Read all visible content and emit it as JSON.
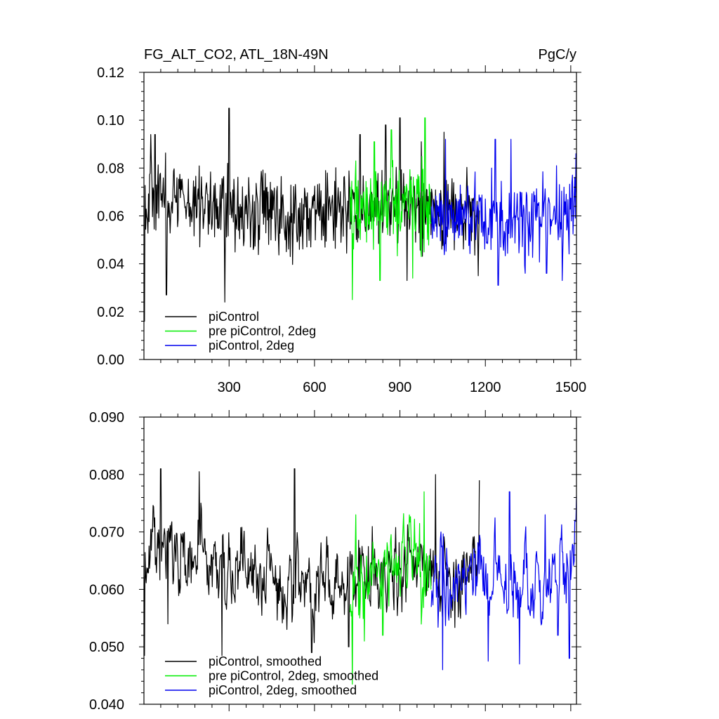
{
  "chart_data": [
    {
      "type": "line",
      "title_left": "FG_ALT_CO2, ATL_18N-49N",
      "title_right": "PgC/y",
      "xlim": [
        1,
        1520
      ],
      "ylim": [
        0.0,
        0.12
      ],
      "xticks": [
        300,
        600,
        900,
        1200,
        1500
      ],
      "xtick_labels": [
        "300",
        "600",
        "900",
        "1200",
        "1500"
      ],
      "yticks": [
        0.0,
        0.02,
        0.04,
        0.06,
        0.08,
        0.1,
        0.12
      ],
      "ytick_labels": [
        "0.00",
        "0.02",
        "0.04",
        "0.06",
        "0.08",
        "0.10",
        "0.12"
      ],
      "legend_position": "bottom-left",
      "series": [
        {
          "name": "piControl",
          "color": "#000000",
          "x_start": 1,
          "x_end": 1180,
          "mean": 0.064,
          "noise": 0.009,
          "segment_means": [
            [
              1,
              0.069
            ],
            [
              250,
              0.065
            ],
            [
              500,
              0.06
            ],
            [
              700,
              0.062
            ],
            [
              900,
              0.064
            ],
            [
              1180,
              0.06
            ]
          ],
          "extremes": [
            [
              2,
              0.016
            ],
            [
              25,
              0.094
            ],
            [
              40,
              0.094
            ],
            [
              80,
              0.027
            ],
            [
              300,
              0.105
            ],
            [
              285,
              0.024
            ],
            [
              760,
              0.094
            ],
            [
              850,
              0.098
            ],
            [
              900,
              0.101
            ],
            [
              925,
              0.033
            ],
            [
              975,
              0.091
            ],
            [
              1055,
              0.095
            ],
            [
              1175,
              0.035
            ]
          ]
        },
        {
          "name": "pre piControl, 2deg",
          "color": "#00ee00",
          "x_start": 725,
          "x_end": 1010,
          "mean": 0.064,
          "noise": 0.01,
          "segment_means": [
            [
              725,
              0.06
            ],
            [
              800,
              0.066
            ],
            [
              900,
              0.066
            ],
            [
              1010,
              0.063
            ]
          ],
          "extremes": [
            [
              733,
              0.025
            ],
            [
              745,
              0.083
            ],
            [
              810,
              0.091
            ],
            [
              830,
              0.033
            ],
            [
              870,
              0.096
            ],
            [
              945,
              0.034
            ],
            [
              988,
              0.101
            ]
          ]
        },
        {
          "name": "piControl, 2deg",
          "color": "#0000ee",
          "x_start": 1010,
          "x_end": 1520,
          "mean": 0.06,
          "noise": 0.009,
          "segment_means": [
            [
              1010,
              0.059
            ],
            [
              1200,
              0.061
            ],
            [
              1400,
              0.058
            ],
            [
              1520,
              0.062
            ]
          ],
          "extremes": [
            [
              1060,
              0.092
            ],
            [
              1235,
              0.092
            ],
            [
              1245,
              0.031
            ],
            [
              1290,
              0.092
            ],
            [
              1340,
              0.036
            ],
            [
              1415,
              0.036
            ],
            [
              1470,
              0.033
            ],
            [
              1518,
              0.086
            ]
          ]
        }
      ]
    },
    {
      "type": "line",
      "xlim": [
        1,
        1520
      ],
      "ylim": [
        0.04,
        0.09
      ],
      "xticks": [
        300,
        600,
        900,
        1200,
        1500
      ],
      "xtick_labels": [],
      "yticks": [
        0.04,
        0.05,
        0.06,
        0.07,
        0.08,
        0.09
      ],
      "ytick_labels": [
        "0.040",
        "0.050",
        "0.060",
        "0.070",
        "0.080",
        "0.090"
      ],
      "legend_position": "bottom-left",
      "series": [
        {
          "name": "piControl, smoothed",
          "color": "#000000",
          "x_start": 1,
          "x_end": 1180,
          "mean": 0.063,
          "noise": 0.0045,
          "segment_means": [
            [
              1,
              0.068
            ],
            [
              250,
              0.065
            ],
            [
              500,
              0.061
            ],
            [
              700,
              0.061
            ],
            [
              900,
              0.063
            ],
            [
              1180,
              0.062
            ]
          ],
          "extremes": [
            [
              3,
              0.0485
            ],
            [
              60,
              0.081
            ],
            [
              85,
              0.054
            ],
            [
              195,
              0.0805
            ],
            [
              275,
              0.0485
            ],
            [
              530,
              0.081
            ],
            [
              590,
              0.049
            ],
            [
              720,
              0.05
            ],
            [
              1025,
              0.08
            ],
            [
              1180,
              0.079
            ]
          ]
        },
        {
          "name": "pre piControl, 2deg, smoothed",
          "color": "#00ee00",
          "x_start": 725,
          "x_end": 1010,
          "mean": 0.063,
          "noise": 0.005,
          "segment_means": [
            [
              725,
              0.058
            ],
            [
              800,
              0.063
            ],
            [
              900,
              0.065
            ],
            [
              1010,
              0.063
            ]
          ],
          "extremes": [
            [
              733,
              0.0435
            ],
            [
              745,
              0.073
            ],
            [
              775,
              0.051
            ],
            [
              840,
              0.052
            ],
            [
              985,
              0.077
            ]
          ]
        },
        {
          "name": "piControl, 2deg, smoothed",
          "color": "#0000ee",
          "x_start": 1010,
          "x_end": 1520,
          "mean": 0.062,
          "noise": 0.0045,
          "segment_means": [
            [
              1010,
              0.061
            ],
            [
              1200,
              0.062
            ],
            [
              1400,
              0.06
            ],
            [
              1520,
              0.067
            ]
          ],
          "extremes": [
            [
              1050,
              0.046
            ],
            [
              1210,
              0.0475
            ],
            [
              1285,
              0.077
            ],
            [
              1320,
              0.047
            ],
            [
              1410,
              0.073
            ],
            [
              1455,
              0.052
            ],
            [
              1495,
              0.048
            ],
            [
              1515,
              0.072
            ]
          ]
        }
      ]
    }
  ]
}
